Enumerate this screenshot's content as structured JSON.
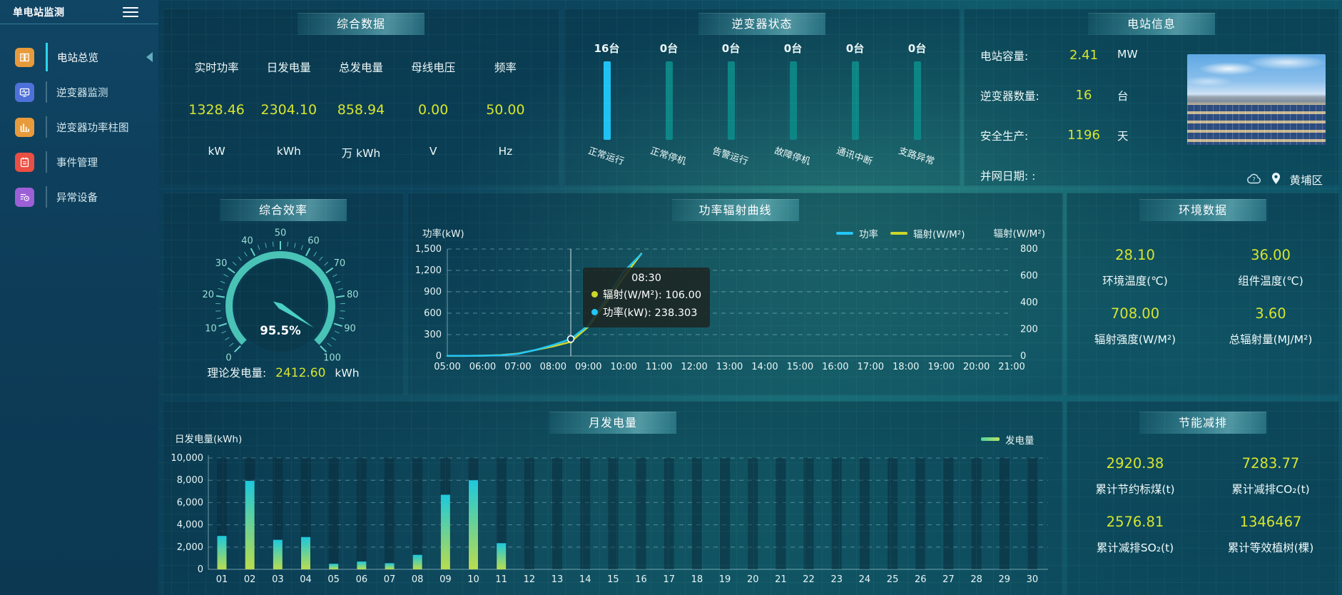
{
  "app": {
    "title": "单电站监测"
  },
  "sidebar": {
    "items": [
      {
        "label": "电站总览",
        "icon": "station-overview-icon",
        "color": "#e89b3c",
        "active": true
      },
      {
        "label": "逆变器监测",
        "icon": "inverter-monitor-icon",
        "color": "#4e71d9",
        "active": false
      },
      {
        "label": "逆变器功率柱图",
        "icon": "inverter-power-bars-icon",
        "color": "#e89b3c",
        "active": false
      },
      {
        "label": "事件管理",
        "icon": "event-management-icon",
        "color": "#ea4f43",
        "active": false
      },
      {
        "label": "异常设备",
        "icon": "abnormal-devices-icon",
        "color": "#9c5fd6",
        "active": false
      }
    ]
  },
  "panels": {
    "overview": {
      "title": "综合数据",
      "stats": [
        {
          "label": "实时功率",
          "value": "1328.46",
          "unit": "kW"
        },
        {
          "label": "日发电量",
          "value": "2304.10",
          "unit": "kWh"
        },
        {
          "label": "总发电量",
          "value": "858.94",
          "unit": "万 kWh"
        },
        {
          "label": "母线电压",
          "value": "0.00",
          "unit": "V"
        },
        {
          "label": "频率",
          "value": "50.00",
          "unit": "Hz"
        }
      ]
    },
    "inverter_status": {
      "title": "逆变器状态"
    },
    "station_info": {
      "title": "电站信息",
      "rows": [
        {
          "label": "电站容量:",
          "value": "2.41",
          "unit": "MW"
        },
        {
          "label": "逆变器数量:",
          "value": "16",
          "unit": "台"
        },
        {
          "label": "安全生产:",
          "value": "1196",
          "unit": "天"
        },
        {
          "label": "并网日期: :",
          "value": "",
          "unit": ""
        }
      ],
      "location": "黄埔区"
    },
    "efficiency": {
      "title": "综合效率",
      "footer_label": "理论发电量:",
      "footer_value": "2412.60",
      "footer_unit": "kWh"
    },
    "power_curve": {
      "title": "功率辐射曲线"
    },
    "environment": {
      "title": "环境数据",
      "items": [
        {
          "value": "28.10",
          "label": "环境温度(℃)"
        },
        {
          "value": "36.00",
          "label": "组件温度(℃)"
        },
        {
          "value": "708.00",
          "label": "辐射强度(W/M²)"
        },
        {
          "value": "3.60",
          "label": "总辐射量(MJ/M²)"
        }
      ]
    },
    "monthly": {
      "title": "月发电量"
    },
    "energy_saving": {
      "title": "节能减排",
      "items": [
        {
          "value": "2920.38",
          "label": "累计节约标煤(t)"
        },
        {
          "value": "7283.77",
          "label": "累计减排CO₂(t)"
        },
        {
          "value": "2576.81",
          "label": "累计减排SO₂(t)"
        },
        {
          "value": "1346467",
          "label": "累计等效植树(棵)"
        }
      ]
    }
  },
  "chart_data": [
    {
      "type": "bar",
      "name": "inverter-status",
      "categories": [
        "正常运行",
        "正常停机",
        "告警运行",
        "故障停机",
        "通讯中断",
        "支路异常"
      ],
      "values": [
        16,
        0,
        0,
        0,
        0,
        0
      ],
      "total": 16,
      "unit": "台",
      "value_labels": [
        "16台",
        "0台",
        "0台",
        "0台",
        "0台",
        "0台"
      ],
      "active_color": "#1fc3f3",
      "track_color": "#0d8585"
    },
    {
      "type": "gauge",
      "name": "efficiency-gauge",
      "value": 95.5,
      "display": "95.5%",
      "min": 0,
      "max": 100,
      "tick_labels": [
        "0",
        "10",
        "20",
        "30",
        "40",
        "50",
        "60",
        "70",
        "80",
        "90",
        "100"
      ],
      "arc_color": "#49c3b6"
    },
    {
      "type": "line",
      "name": "power-radiation-curve",
      "title": "功率辐射曲线",
      "x_ticks": [
        "05:00",
        "06:00",
        "07:00",
        "08:00",
        "09:00",
        "10:00",
        "11:00",
        "12:00",
        "13:00",
        "14:00",
        "15:00",
        "16:00",
        "17:00",
        "18:00",
        "19:00",
        "20:00",
        "21:00"
      ],
      "ylabel_left": "功率(kW)",
      "yticks_left": [
        "0",
        "300",
        "600",
        "900",
        "1,200",
        "1,500"
      ],
      "ylim_left": [
        0,
        1500
      ],
      "ylabel_right": "辐射(W/M²)",
      "yticks_right": [
        "0",
        "200",
        "400",
        "600",
        "800"
      ],
      "ylim_right": [
        0,
        800
      ],
      "legend": [
        {
          "name": "功率",
          "color": "#23c6f6"
        },
        {
          "name": "辐射(W/M²)",
          "color": "#cdd62c"
        }
      ],
      "series": [
        {
          "name": "功率",
          "axis": "left",
          "color": "#23c6f6",
          "points": [
            {
              "t": "05:00",
              "v": 2
            },
            {
              "t": "05:30",
              "v": 2
            },
            {
              "t": "06:00",
              "v": 4
            },
            {
              "t": "06:30",
              "v": 10
            },
            {
              "t": "07:00",
              "v": 30
            },
            {
              "t": "07:30",
              "v": 85
            },
            {
              "t": "08:00",
              "v": 155
            },
            {
              "t": "08:30",
              "v": 238.303
            },
            {
              "t": "09:00",
              "v": 430
            },
            {
              "t": "09:30",
              "v": 800
            },
            {
              "t": "10:00",
              "v": 1180
            },
            {
              "t": "10:30",
              "v": 1430
            }
          ]
        },
        {
          "name": "辐射(W/M²)",
          "axis": "right",
          "color": "#cdd62c",
          "points": [
            {
              "t": "05:00",
              "v": 1
            },
            {
              "t": "05:30",
              "v": 1
            },
            {
              "t": "06:00",
              "v": 3
            },
            {
              "t": "06:30",
              "v": 7
            },
            {
              "t": "07:00",
              "v": 18
            },
            {
              "t": "07:30",
              "v": 45
            },
            {
              "t": "08:00",
              "v": 72
            },
            {
              "t": "08:30",
              "v": 106
            },
            {
              "t": "09:00",
              "v": 220
            },
            {
              "t": "09:30",
              "v": 400
            },
            {
              "t": "10:00",
              "v": 590
            },
            {
              "t": "10:30",
              "v": 765
            }
          ]
        }
      ],
      "tooltip": {
        "time": "08:30",
        "rows": [
          {
            "name": "辐射(W/M²)",
            "value": "106.00",
            "color": "#cdd62c"
          },
          {
            "name": "功率(kW)",
            "value": "238.303",
            "color": "#23c6f6"
          }
        ]
      }
    },
    {
      "type": "bar",
      "name": "monthly-generation",
      "title": "月发电量",
      "ylabel": "日发电量(kWh)",
      "yticks": [
        "0",
        "2,000",
        "4,000",
        "6,000",
        "8,000",
        "10,000"
      ],
      "ylim": [
        0,
        10000
      ],
      "legend": "发电量",
      "categories": [
        "01",
        "02",
        "03",
        "04",
        "05",
        "06",
        "07",
        "08",
        "09",
        "10",
        "11",
        "12",
        "13",
        "14",
        "15",
        "16",
        "17",
        "18",
        "19",
        "20",
        "21",
        "22",
        "23",
        "24",
        "25",
        "26",
        "27",
        "28",
        "29",
        "30"
      ],
      "values": [
        3000,
        7950,
        2650,
        2900,
        500,
        700,
        550,
        1300,
        6700,
        8000,
        2350,
        0,
        0,
        0,
        0,
        0,
        0,
        0,
        0,
        0,
        0,
        0,
        0,
        0,
        0,
        0,
        0,
        0,
        0,
        0
      ]
    }
  ],
  "colors": {
    "accent_cyan": "#1fc3f3",
    "value_yellow": "#d7e52f",
    "teal_track": "#0d8585",
    "gauge_teal": "#49c3b6"
  }
}
